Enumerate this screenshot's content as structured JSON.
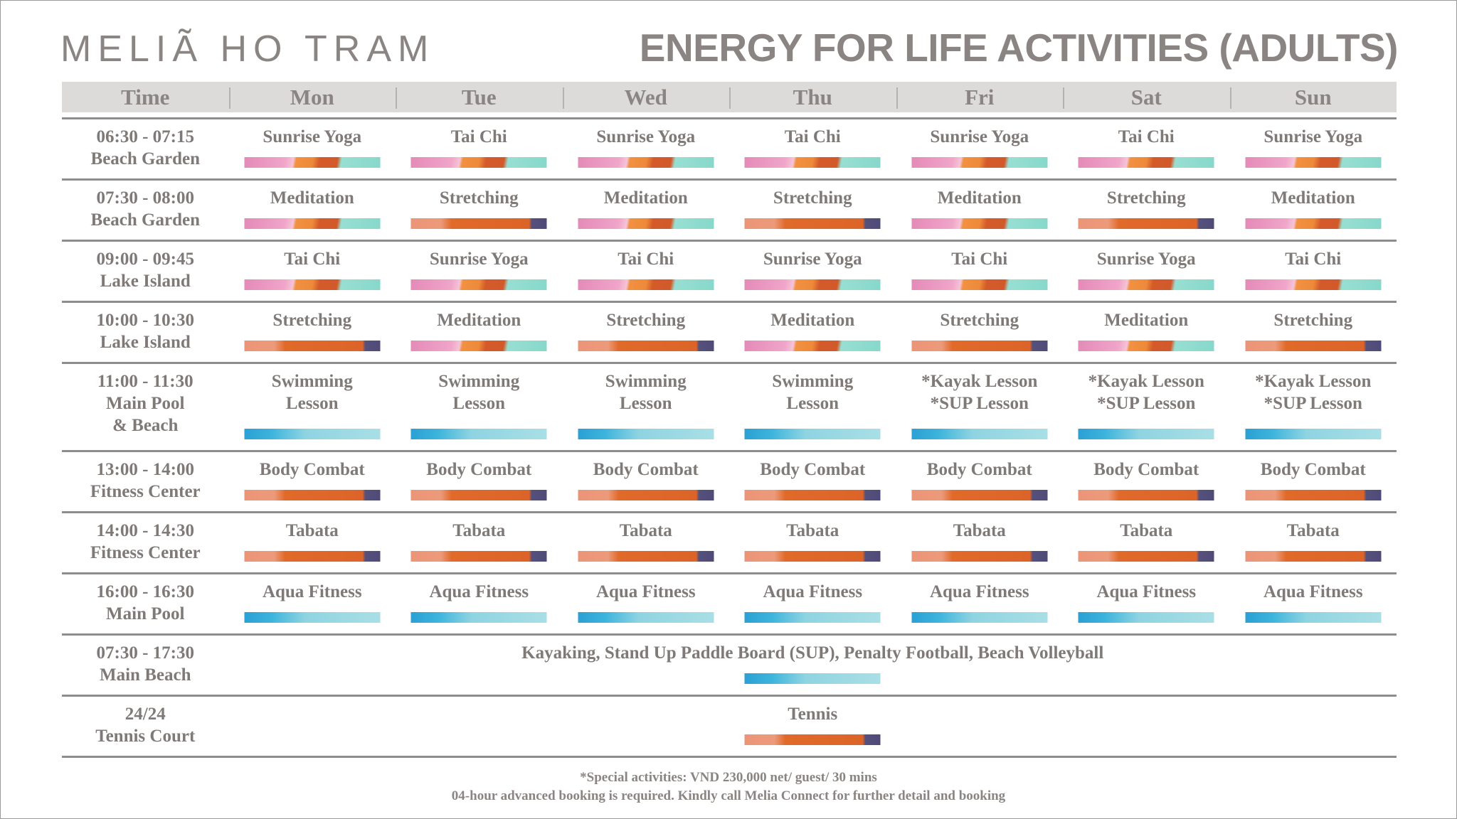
{
  "brand": "MELIÃ HO TRAM",
  "title": "ENERGY FOR LIFE ACTIVITIES (ADULTS)",
  "headers": [
    "Time",
    "Mon",
    "Tue",
    "Wed",
    "Thu",
    "Fri",
    "Sat",
    "Sun"
  ],
  "rows": [
    {
      "time": "06:30 - 07:15\nBeach Garden",
      "cells": [
        {
          "text": "Sunrise Yoga",
          "bar": "zen"
        },
        {
          "text": "Tai Chi",
          "bar": "zen"
        },
        {
          "text": "Sunrise Yoga",
          "bar": "zen"
        },
        {
          "text": "Tai Chi",
          "bar": "zen"
        },
        {
          "text": "Sunrise Yoga",
          "bar": "zen"
        },
        {
          "text": "Tai Chi",
          "bar": "zen"
        },
        {
          "text": "Sunrise Yoga",
          "bar": "zen"
        }
      ]
    },
    {
      "time": "07:30 - 08:00\nBeach Garden",
      "cells": [
        {
          "text": "Meditation",
          "bar": "zen"
        },
        {
          "text": "Stretching",
          "bar": "energy"
        },
        {
          "text": "Meditation",
          "bar": "zen"
        },
        {
          "text": "Stretching",
          "bar": "energy"
        },
        {
          "text": "Meditation",
          "bar": "zen"
        },
        {
          "text": "Stretching",
          "bar": "energy"
        },
        {
          "text": "Meditation",
          "bar": "zen"
        }
      ]
    },
    {
      "time": "09:00 - 09:45\nLake Island",
      "cells": [
        {
          "text": "Tai Chi",
          "bar": "zen"
        },
        {
          "text": "Sunrise Yoga",
          "bar": "zen"
        },
        {
          "text": "Tai Chi",
          "bar": "zen"
        },
        {
          "text": "Sunrise Yoga",
          "bar": "zen"
        },
        {
          "text": "Tai Chi",
          "bar": "zen"
        },
        {
          "text": "Sunrise Yoga",
          "bar": "zen"
        },
        {
          "text": "Tai Chi",
          "bar": "zen"
        }
      ]
    },
    {
      "time": "10:00 - 10:30\nLake Island",
      "cells": [
        {
          "text": "Stretching",
          "bar": "energy"
        },
        {
          "text": "Meditation",
          "bar": "zen"
        },
        {
          "text": "Stretching",
          "bar": "energy"
        },
        {
          "text": "Meditation",
          "bar": "zen"
        },
        {
          "text": "Stretching",
          "bar": "energy"
        },
        {
          "text": "Meditation",
          "bar": "zen"
        },
        {
          "text": "Stretching",
          "bar": "energy"
        }
      ]
    },
    {
      "time": "11:00 - 11:30\nMain Pool\n& Beach",
      "tall": true,
      "cells": [
        {
          "text": "Swimming\nLesson",
          "bar": "aqua"
        },
        {
          "text": "Swimming\nLesson",
          "bar": "aqua"
        },
        {
          "text": "Swimming\nLesson",
          "bar": "aqua"
        },
        {
          "text": "Swimming\nLesson",
          "bar": "aqua"
        },
        {
          "text": "*Kayak Lesson\n*SUP Lesson",
          "bar": "aqua"
        },
        {
          "text": "*Kayak Lesson\n*SUP Lesson",
          "bar": "aqua"
        },
        {
          "text": "*Kayak Lesson\n*SUP Lesson",
          "bar": "aqua"
        }
      ]
    },
    {
      "time": "13:00 - 14:00\nFitness Center",
      "cells": [
        {
          "text": "Body Combat",
          "bar": "energy"
        },
        {
          "text": "Body Combat",
          "bar": "energy"
        },
        {
          "text": "Body Combat",
          "bar": "energy"
        },
        {
          "text": "Body Combat",
          "bar": "energy"
        },
        {
          "text": "Body Combat",
          "bar": "energy"
        },
        {
          "text": "Body Combat",
          "bar": "energy"
        },
        {
          "text": "Body Combat",
          "bar": "energy"
        }
      ]
    },
    {
      "time": "14:00 - 14:30\nFitness Center",
      "cells": [
        {
          "text": "Tabata",
          "bar": "energy"
        },
        {
          "text": "Tabata",
          "bar": "energy"
        },
        {
          "text": "Tabata",
          "bar": "energy"
        },
        {
          "text": "Tabata",
          "bar": "energy"
        },
        {
          "text": "Tabata",
          "bar": "energy"
        },
        {
          "text": "Tabata",
          "bar": "energy"
        },
        {
          "text": "Tabata",
          "bar": "energy"
        }
      ]
    },
    {
      "time": "16:00 - 16:30\nMain Pool",
      "cells": [
        {
          "text": "Aqua Fitness",
          "bar": "aqua"
        },
        {
          "text": "Aqua Fitness",
          "bar": "aqua"
        },
        {
          "text": "Aqua Fitness",
          "bar": "aqua"
        },
        {
          "text": "Aqua Fitness",
          "bar": "aqua"
        },
        {
          "text": "Aqua Fitness",
          "bar": "aqua"
        },
        {
          "text": "Aqua Fitness",
          "bar": "aqua"
        },
        {
          "text": "Aqua Fitness",
          "bar": "aqua"
        }
      ]
    },
    {
      "time": "07:30 - 17:30\nMain Beach",
      "span": {
        "text": "Kayaking, Stand Up Paddle Board (SUP), Penalty Football, Beach Volleyball",
        "bar": "aqua"
      }
    },
    {
      "time": "24/24\nTennis Court",
      "span": {
        "text": "Tennis",
        "bar": "energy"
      }
    }
  ],
  "footer": {
    "line1": "*Special activities: VND 230,000 net/ guest/ 30 mins",
    "line2": "04-hour advanced booking is required. Kindly call Melia Connect for further detail and booking"
  },
  "colors": {
    "text": "#7f7a78",
    "header_bg": "#dcdbd9",
    "zen": "#e48ab8",
    "energy": "#dc6428",
    "aqua": "#2aa0d4"
  }
}
